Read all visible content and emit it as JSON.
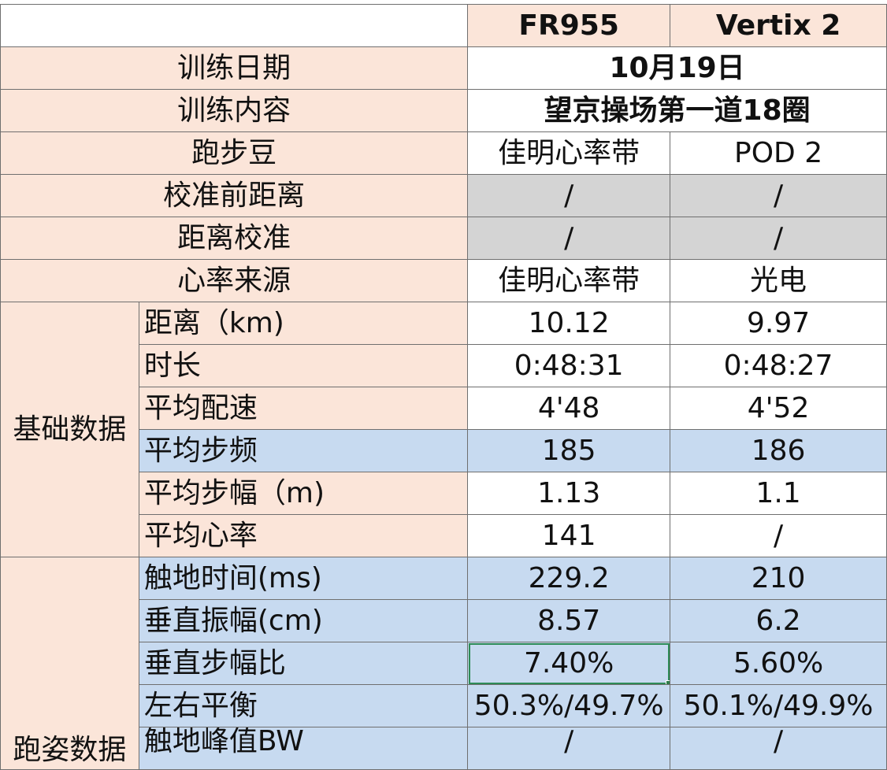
{
  "header": {
    "col1": "FR955",
    "col2": "Vertix 2"
  },
  "info_rows": [
    {
      "label": "训练日期",
      "merged": "10月19日"
    },
    {
      "label": "训练内容",
      "merged": "望京操场第一道18圈"
    },
    {
      "label": "跑步豆",
      "v1": "佳明心率带",
      "v2": "POD 2"
    },
    {
      "label": "校准前距离",
      "v1": "/",
      "v2": "/"
    },
    {
      "label": "距离校准",
      "v1": "/",
      "v2": "/"
    },
    {
      "label": "心率来源",
      "v1": "佳明心率带",
      "v2": "光电"
    }
  ],
  "groups": {
    "basic": "基础数据",
    "form": "跑姿数据"
  },
  "basic_rows": [
    {
      "label": "距离（km)",
      "v1": "10.12",
      "v2": "9.97"
    },
    {
      "label": "时长",
      "v1": "0:48:31",
      "v2": "0:48:27"
    },
    {
      "label": "平均配速",
      "v1": "4'48",
      "v2": "4'52"
    },
    {
      "label": "平均步频",
      "v1": "185",
      "v2": "186"
    },
    {
      "label": "平均步幅（m)",
      "v1": "1.13",
      "v2": "1.1"
    },
    {
      "label": "平均心率",
      "v1": "141",
      "v2": "/"
    }
  ],
  "form_rows": [
    {
      "label": "触地时间(ms)",
      "v1": "229.2",
      "v2": "210"
    },
    {
      "label": "垂直振幅(cm)",
      "v1": "8.57",
      "v2": "6.2"
    },
    {
      "label": "垂直步幅比",
      "v1": "7.40%",
      "v2": "5.60%"
    },
    {
      "label": "左右平衡",
      "v1": "50.3%/49.7%",
      "v2": "50.1%/49.9%"
    },
    {
      "label": "触地峰值BW",
      "v1": "/",
      "v2": "/"
    }
  ],
  "colors": {
    "peach": "#fbe5d9",
    "gray": "#d4d4d4",
    "blue": "#c7daf0",
    "selection": "#2e8b57"
  }
}
